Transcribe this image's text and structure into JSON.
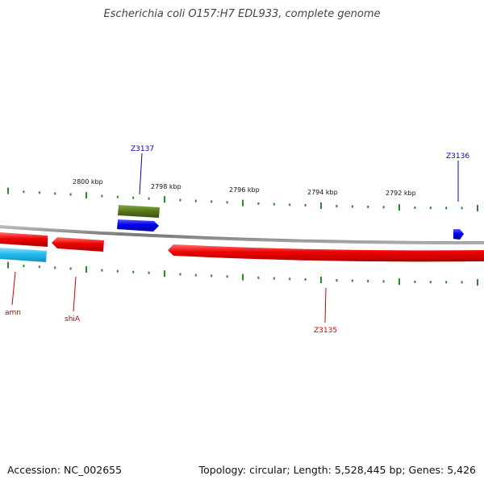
{
  "map": {
    "title": "Escherichia coli O157:H7 EDL933, complete genome",
    "accession": "Accession: NC_002655",
    "summary": "Topology: circular; Length: 5,528,445 bp; Genes: 5,426"
  },
  "scale": {
    "labels": [
      "2800 kbp",
      "2798 kbp",
      "2796 kbp",
      "2794 kbp",
      "2792 kbp"
    ]
  },
  "genes": [
    {
      "name": "Z3137",
      "strand": "forward",
      "color": "#0000dd"
    },
    {
      "name": "Z3136",
      "strand": "forward",
      "color": "#0000dd"
    },
    {
      "name": "amn",
      "strand": "reverse",
      "color": "#cc0000"
    },
    {
      "name": "shiA",
      "strand": "reverse",
      "color": "#cc0000"
    },
    {
      "name": "Z3135",
      "strand": "reverse",
      "color": "#cc0000"
    }
  ],
  "colors": {
    "forward_gene": "#0000ee",
    "reverse_gene": "#ee0000",
    "forward_label": "#0000bb",
    "reverse_label": "#cc0000",
    "olive_feature": "#5a7a1a",
    "cyan_feature": "#22bbee",
    "backbone": "#888888",
    "ticks": "#2a8a2a"
  }
}
